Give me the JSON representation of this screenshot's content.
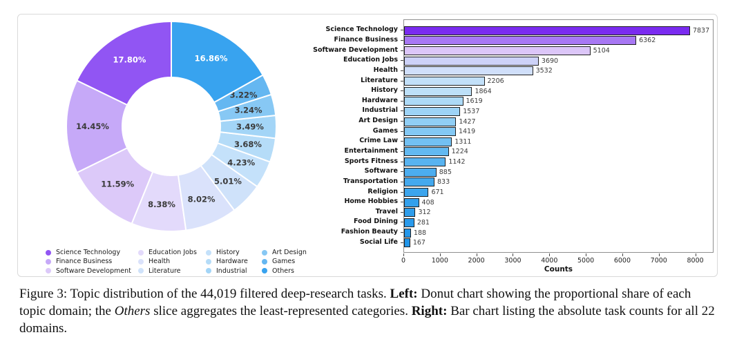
{
  "figure": {
    "caption_segments": [
      {
        "text": "Figure 3: Topic distribution of the 44,019 filtered deep-research tasks. ",
        "bold": false,
        "italic": false
      },
      {
        "text": "Left:",
        "bold": true,
        "italic": false
      },
      {
        "text": " Donut chart showing the proportional share of each topic domain; the ",
        "bold": false,
        "italic": false
      },
      {
        "text": "Others",
        "bold": false,
        "italic": true
      },
      {
        "text": " slice aggregates the least-represented categories. ",
        "bold": false,
        "italic": false
      },
      {
        "text": "Right:",
        "bold": true,
        "italic": false
      },
      {
        "text": " Bar chart listing the absolute task counts for all 22 domains.",
        "bold": false,
        "italic": false
      }
    ]
  },
  "chart_data": [
    {
      "type": "pie",
      "subtype": "donut",
      "title": "",
      "start_angle_deg": 90,
      "direction": "counterclockwise",
      "legend_position": "bottom",
      "labels": [
        "Science Technology",
        "Finance Business",
        "Software Development",
        "Education Jobs",
        "Health",
        "Literature",
        "History",
        "Hardware",
        "Industrial",
        "Art Design",
        "Games",
        "Others"
      ],
      "values": [
        17.8,
        14.45,
        11.59,
        8.38,
        8.02,
        5.01,
        4.23,
        3.68,
        3.49,
        3.24,
        3.22,
        16.86
      ],
      "display_values": [
        "17.80%",
        "14.45%",
        "11.59%",
        "8.38%",
        "8.02%",
        "5.01%",
        "4.23%",
        "3.68%",
        "3.49%",
        "3.24%",
        "3.22%",
        "16.86%"
      ],
      "colors": [
        "#9155F3",
        "#C6A9F8",
        "#DCC9F9",
        "#E3DAFB",
        "#DAE2FB",
        "#CFE2FA",
        "#C4E1FA",
        "#B5DCF8",
        "#A3D5F7",
        "#87C8F4",
        "#65B7F1",
        "#38A3EF"
      ],
      "label_text_colors": [
        "#ffffff",
        "#3a3a3a",
        "#3a3a3a",
        "#3a3a3a",
        "#3a3a3a",
        "#3a3a3a",
        "#3a3a3a",
        "#3a3a3a",
        "#3a3a3a",
        "#3a3a3a",
        "#3a3a3a",
        "#ffffff"
      ]
    },
    {
      "type": "bar",
      "orientation": "horizontal",
      "title": "",
      "xlabel": "Counts",
      "ylabel": "",
      "xlim": [
        0,
        8500
      ],
      "xticks": [
        0,
        1000,
        2000,
        3000,
        4000,
        5000,
        6000,
        7000,
        8000
      ],
      "grid": false,
      "bar_edge_color": "#1f1f1f",
      "categories": [
        "Science Technology",
        "Finance Business",
        "Software Development",
        "Education Jobs",
        "Health",
        "Literature",
        "History",
        "Hardware",
        "Industrial",
        "Art Design",
        "Games",
        "Crime Law",
        "Entertainment",
        "Sports Fitness",
        "Software",
        "Transportation",
        "Religion",
        "Home Hobbies",
        "Travel",
        "Food Dining",
        "Fashion Beauty",
        "Social Life"
      ],
      "values": [
        7837,
        6362,
        5104,
        3690,
        3532,
        2206,
        1864,
        1619,
        1537,
        1427,
        1419,
        1311,
        1224,
        1142,
        885,
        833,
        671,
        408,
        312,
        281,
        188,
        167
      ],
      "colors": [
        "#7A2BF0",
        "#A878F4",
        "#DCC6F8",
        "#CDD2F8",
        "#D0DFFA",
        "#C2E0F9",
        "#BDE0F8",
        "#ADDAF7",
        "#9DD3F6",
        "#90CEF5",
        "#83C8F4",
        "#72C0F2",
        "#62B9F1",
        "#58B3F0",
        "#4CADEF",
        "#44A9EE",
        "#3CA5ED",
        "#33A0EC",
        "#2E9DEB",
        "#2A9AEB",
        "#2597EA",
        "#2095E9"
      ]
    }
  ]
}
